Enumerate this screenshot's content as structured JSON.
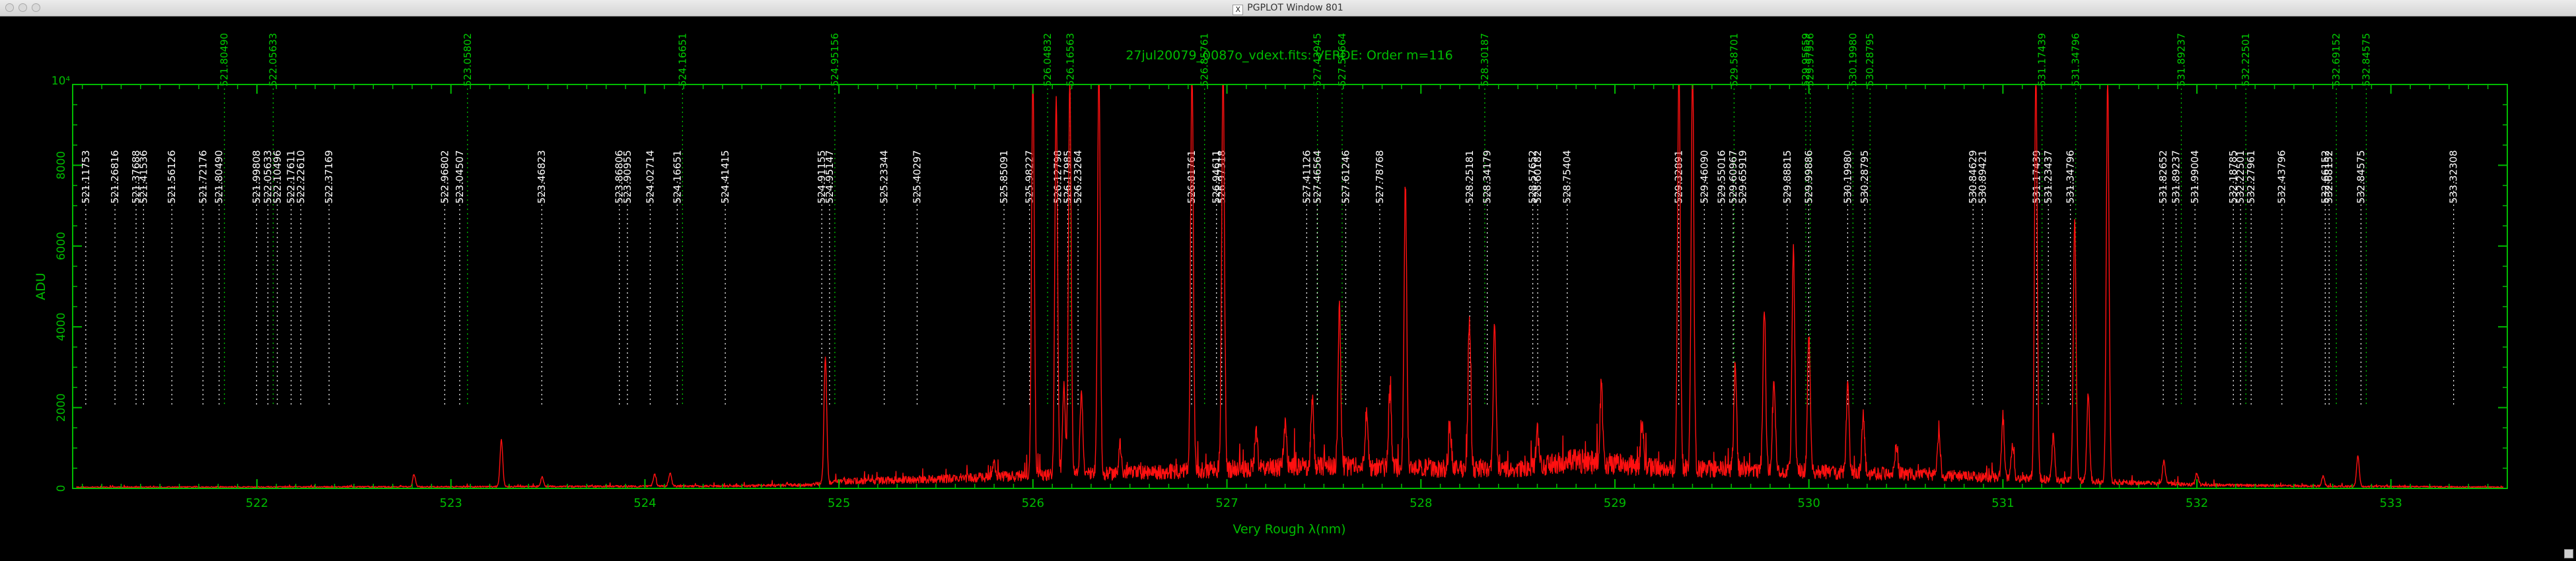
{
  "window": {
    "title": "PGPLOT Window 801",
    "icon": "x11-icon"
  },
  "colors": {
    "background": "#000000",
    "axes": "#00bb00",
    "spectrum": "#ff1010",
    "white_marker": "#ffffff",
    "green_marker": "#00cc00"
  },
  "chart_data": {
    "type": "line",
    "title": "27jul20079_0087o_vdext.fits: VERDE: Order m=116",
    "xlabel": "Very Rough λ(nm)",
    "ylabel": "ADU",
    "xlim": [
      521.05,
      533.6
    ],
    "ylim": [
      0,
      10000
    ],
    "ylim_label": "10⁴",
    "x_ticks": [
      522,
      523,
      524,
      525,
      526,
      527,
      528,
      529,
      530,
      531,
      532,
      533
    ],
    "y_ticks": [
      0,
      2000,
      4000,
      6000,
      8000
    ],
    "grid": false,
    "line_labels": [
      {
        "label": "521.11753",
        "x": 521.11753,
        "color": "white"
      },
      {
        "label": "521.26816",
        "x": 521.26816,
        "color": "white"
      },
      {
        "label": "521.37688",
        "x": 521.37688,
        "color": "white"
      },
      {
        "label": "521.41536",
        "x": 521.41536,
        "color": "white"
      },
      {
        "label": "521.56126",
        "x": 521.56126,
        "color": "white"
      },
      {
        "label": "521.72176",
        "x": 521.72176,
        "color": "white"
      },
      {
        "label": "521.80490",
        "x": 521.8049,
        "color": "green"
      },
      {
        "label": "521.80490",
        "x": 521.8049,
        "color": "white"
      },
      {
        "label": "521.99808",
        "x": 521.99808,
        "color": "white"
      },
      {
        "label": "522.05633",
        "x": 522.05633,
        "color": "green"
      },
      {
        "label": "522.05633",
        "x": 522.05633,
        "color": "white"
      },
      {
        "label": "522.10496",
        "x": 522.10496,
        "color": "white"
      },
      {
        "label": "522.17611",
        "x": 522.17611,
        "color": "white"
      },
      {
        "label": "522.22610",
        "x": 522.2261,
        "color": "white"
      },
      {
        "label": "522.37169",
        "x": 522.37169,
        "color": "white"
      },
      {
        "label": "522.96802",
        "x": 522.96802,
        "color": "white"
      },
      {
        "label": "523.05802",
        "x": 523.05802,
        "color": "green"
      },
      {
        "label": "523.04507",
        "x": 523.04507,
        "color": "white"
      },
      {
        "label": "523.46823",
        "x": 523.46823,
        "color": "white"
      },
      {
        "label": "523.86806",
        "x": 523.86806,
        "color": "white"
      },
      {
        "label": "523.90955",
        "x": 523.90955,
        "color": "white"
      },
      {
        "label": "524.02714",
        "x": 524.02714,
        "color": "white"
      },
      {
        "label": "524.16651",
        "x": 524.16651,
        "color": "green"
      },
      {
        "label": "524.16651",
        "x": 524.16651,
        "color": "white"
      },
      {
        "label": "524.41415",
        "x": 524.41415,
        "color": "white"
      },
      {
        "label": "524.91155",
        "x": 524.91155,
        "color": "white"
      },
      {
        "label": "524.95156",
        "x": 524.95156,
        "color": "green"
      },
      {
        "label": "524.95147",
        "x": 524.95147,
        "color": "white"
      },
      {
        "label": "525.23344",
        "x": 525.23344,
        "color": "white"
      },
      {
        "label": "525.40297",
        "x": 525.40297,
        "color": "white"
      },
      {
        "label": "525.85091",
        "x": 525.85091,
        "color": "white"
      },
      {
        "label": "525.98227",
        "x": 525.98227,
        "color": "white"
      },
      {
        "label": "526.04832",
        "x": 526.04832,
        "color": "green"
      },
      {
        "label": "526.12798",
        "x": 526.12798,
        "color": "white"
      },
      {
        "label": "526.16563",
        "x": 526.16563,
        "color": "green"
      },
      {
        "label": "526.17985",
        "x": 526.17985,
        "color": "white"
      },
      {
        "label": "526.23264",
        "x": 526.23264,
        "color": "white"
      },
      {
        "label": "526.81761",
        "x": 526.81761,
        "color": "white"
      },
      {
        "label": "526.85761",
        "x": 526.85761,
        "color": "green"
      },
      {
        "label": "526.94611",
        "x": 526.94611,
        "color": "white"
      },
      {
        "label": "526.97318",
        "x": 526.97318,
        "color": "white"
      },
      {
        "label": "527.41126",
        "x": 527.41126,
        "color": "white"
      },
      {
        "label": "527.43945",
        "x": 527.43945,
        "color": "green"
      },
      {
        "label": "527.46564",
        "x": 527.46564,
        "color": "white"
      },
      {
        "label": "527.56664",
        "x": 527.56664,
        "color": "green"
      },
      {
        "label": "527.61246",
        "x": 527.61246,
        "color": "white"
      },
      {
        "label": "527.78768",
        "x": 527.78768,
        "color": "white"
      },
      {
        "label": "528.25181",
        "x": 528.25181,
        "color": "white"
      },
      {
        "label": "528.30187",
        "x": 528.30187,
        "color": "green"
      },
      {
        "label": "528.34179",
        "x": 528.34179,
        "color": "white"
      },
      {
        "label": "528.57652",
        "x": 528.57652,
        "color": "white"
      },
      {
        "label": "528.60182",
        "x": 528.60182,
        "color": "white"
      },
      {
        "label": "528.75404",
        "x": 528.75404,
        "color": "white"
      },
      {
        "label": "529.32891",
        "x": 529.32891,
        "color": "white"
      },
      {
        "label": "529.46090",
        "x": 529.4609,
        "color": "white"
      },
      {
        "label": "529.55016",
        "x": 529.55016,
        "color": "white"
      },
      {
        "label": "529.58701",
        "x": 529.58701,
        "color": "green"
      },
      {
        "label": "529.60967",
        "x": 529.60967,
        "color": "white"
      },
      {
        "label": "529.65919",
        "x": 529.65919,
        "color": "white"
      },
      {
        "label": "529.88815",
        "x": 529.88815,
        "color": "white"
      },
      {
        "label": "529.95659",
        "x": 529.95659,
        "color": "green"
      },
      {
        "label": "529.97956",
        "x": 529.97956,
        "color": "green"
      },
      {
        "label": "529.99886",
        "x": 529.99886,
        "color": "white"
      },
      {
        "label": "530.19980",
        "x": 530.1998,
        "color": "white"
      },
      {
        "label": "530.19980",
        "x": 530.1998,
        "color": "green"
      },
      {
        "label": "530.28795",
        "x": 530.28795,
        "color": "white"
      },
      {
        "label": "530.28795",
        "x": 530.28795,
        "color": "green"
      },
      {
        "label": "530.84629",
        "x": 530.84629,
        "color": "white"
      },
      {
        "label": "530.89421",
        "x": 530.89421,
        "color": "white"
      },
      {
        "label": "531.17439",
        "x": 531.17439,
        "color": "white"
      },
      {
        "label": "531.17439",
        "x": 531.17439,
        "color": "green"
      },
      {
        "label": "531.23437",
        "x": 531.23437,
        "color": "white"
      },
      {
        "label": "531.34796",
        "x": 531.34796,
        "color": "white"
      },
      {
        "label": "531.34796",
        "x": 531.34796,
        "color": "green"
      },
      {
        "label": "531.82652",
        "x": 531.82652,
        "color": "white"
      },
      {
        "label": "531.89237",
        "x": 531.89237,
        "color": "white"
      },
      {
        "label": "531.89237",
        "x": 531.89237,
        "color": "green"
      },
      {
        "label": "531.99004",
        "x": 531.99004,
        "color": "white"
      },
      {
        "label": "532.18785",
        "x": 532.18785,
        "color": "white"
      },
      {
        "label": "532.22501",
        "x": 532.22501,
        "color": "white"
      },
      {
        "label": "532.22501",
        "x": 532.22501,
        "color": "green"
      },
      {
        "label": "532.27961",
        "x": 532.27961,
        "color": "white"
      },
      {
        "label": "532.43796",
        "x": 532.43796,
        "color": "white"
      },
      {
        "label": "532.66152",
        "x": 532.66152,
        "color": "white"
      },
      {
        "label": "532.68152",
        "x": 532.68152,
        "color": "white"
      },
      {
        "label": "532.69152",
        "x": 532.69152,
        "color": "green"
      },
      {
        "label": "532.84575",
        "x": 532.84575,
        "color": "white"
      },
      {
        "label": "532.84575",
        "x": 532.84575,
        "color": "green"
      },
      {
        "label": "533.32308",
        "x": 533.32308,
        "color": "white"
      }
    ],
    "peaks": [
      {
        "x": 522.81,
        "y": 300
      },
      {
        "x": 523.26,
        "y": 1150
      },
      {
        "x": 523.47,
        "y": 230
      },
      {
        "x": 524.05,
        "y": 300
      },
      {
        "x": 524.13,
        "y": 320
      },
      {
        "x": 524.93,
        "y": 3150
      },
      {
        "x": 525.8,
        "y": 350
      },
      {
        "x": 526.0,
        "y": 10000
      },
      {
        "x": 526.12,
        "y": 9300
      },
      {
        "x": 526.16,
        "y": 2200
      },
      {
        "x": 526.19,
        "y": 9800
      },
      {
        "x": 526.25,
        "y": 2000
      },
      {
        "x": 526.34,
        "y": 10000
      },
      {
        "x": 526.45,
        "y": 700
      },
      {
        "x": 526.82,
        "y": 10000
      },
      {
        "x": 526.98,
        "y": 10000
      },
      {
        "x": 527.15,
        "y": 900
      },
      {
        "x": 527.3,
        "y": 1100
      },
      {
        "x": 527.44,
        "y": 1600
      },
      {
        "x": 527.58,
        "y": 3900
      },
      {
        "x": 527.72,
        "y": 1400
      },
      {
        "x": 527.84,
        "y": 1900
      },
      {
        "x": 527.92,
        "y": 7000
      },
      {
        "x": 528.15,
        "y": 1000
      },
      {
        "x": 528.25,
        "y": 3700
      },
      {
        "x": 528.38,
        "y": 3600
      },
      {
        "x": 528.6,
        "y": 900
      },
      {
        "x": 528.93,
        "y": 1900
      },
      {
        "x": 529.14,
        "y": 1100
      },
      {
        "x": 529.33,
        "y": 10000
      },
      {
        "x": 529.4,
        "y": 10000
      },
      {
        "x": 529.62,
        "y": 2600
      },
      {
        "x": 529.77,
        "y": 4100
      },
      {
        "x": 529.82,
        "y": 2300
      },
      {
        "x": 529.92,
        "y": 5500
      },
      {
        "x": 530.0,
        "y": 3300
      },
      {
        "x": 530.2,
        "y": 2100
      },
      {
        "x": 530.28,
        "y": 1400
      },
      {
        "x": 530.45,
        "y": 700
      },
      {
        "x": 530.67,
        "y": 1000
      },
      {
        "x": 531.0,
        "y": 1400
      },
      {
        "x": 531.05,
        "y": 800
      },
      {
        "x": 531.17,
        "y": 10000
      },
      {
        "x": 531.26,
        "y": 1100
      },
      {
        "x": 531.37,
        "y": 6500
      },
      {
        "x": 531.44,
        "y": 2200
      },
      {
        "x": 531.54,
        "y": 10000
      },
      {
        "x": 531.83,
        "y": 600
      },
      {
        "x": 532.0,
        "y": 300
      },
      {
        "x": 532.65,
        "y": 250
      },
      {
        "x": 532.83,
        "y": 750
      }
    ],
    "continuum": [
      [
        521.1,
        30
      ],
      [
        523.0,
        40
      ],
      [
        524.5,
        60
      ],
      [
        524.85,
        90
      ],
      [
        525.0,
        170
      ],
      [
        525.5,
        230
      ],
      [
        526.0,
        320
      ],
      [
        526.5,
        380
      ],
      [
        527.0,
        480
      ],
      [
        527.5,
        560
      ],
      [
        528.0,
        500
      ],
      [
        528.5,
        460
      ],
      [
        528.8,
        680
      ],
      [
        529.2,
        520
      ],
      [
        529.5,
        480
      ],
      [
        530.0,
        420
      ],
      [
        530.5,
        360
      ],
      [
        531.0,
        260
      ],
      [
        531.5,
        170
      ],
      [
        532.0,
        90
      ],
      [
        532.5,
        60
      ],
      [
        533.2,
        40
      ],
      [
        533.6,
        30
      ]
    ]
  }
}
